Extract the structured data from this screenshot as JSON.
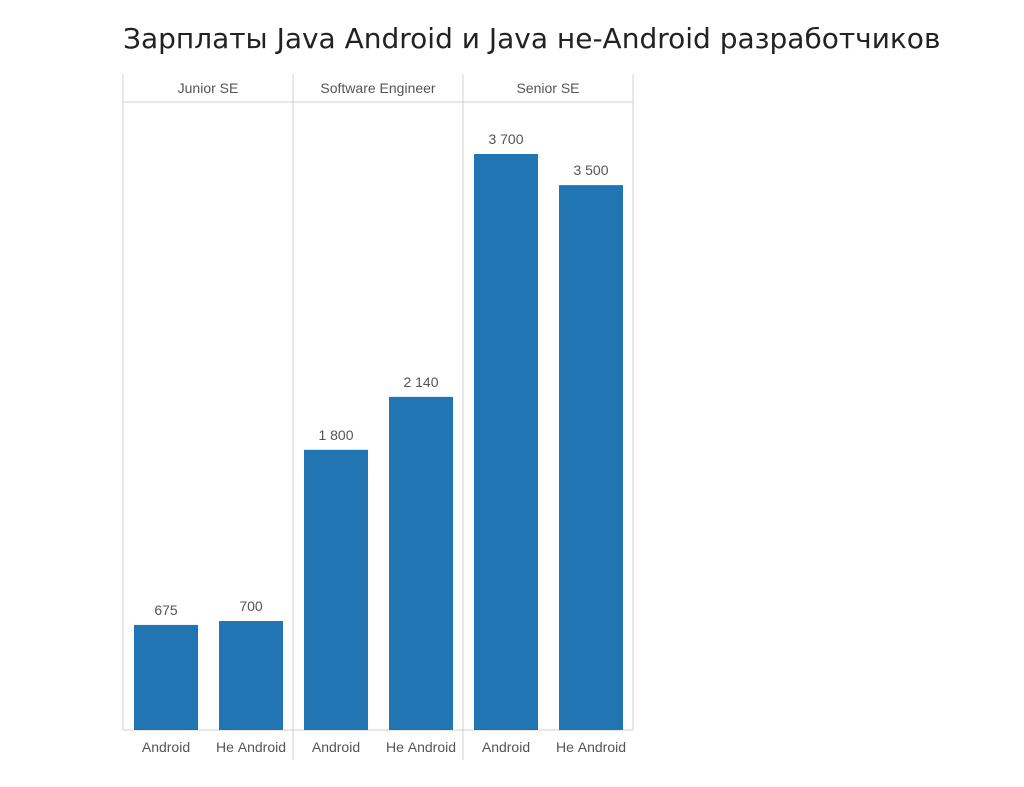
{
  "title": "Зарплаты Java Android и Java не-Android разработчиков",
  "chart_data": {
    "type": "bar",
    "title": "Зарплаты Java Android и Java не-Android разработчиков",
    "panels": [
      {
        "name": "Junior SE",
        "categories": [
          "Android",
          "Не Android"
        ],
        "values": [
          675,
          700
        ],
        "value_labels": [
          "675",
          "700"
        ]
      },
      {
        "name": "Software Engineer",
        "categories": [
          "Android",
          "Не Android"
        ],
        "values": [
          1800,
          2140
        ],
        "value_labels": [
          "1 800",
          "2 140"
        ]
      },
      {
        "name": "Senior SE",
        "categories": [
          "Android",
          "Не Android"
        ],
        "values": [
          3700,
          3500
        ],
        "value_labels": [
          "3 700",
          "3 500"
        ]
      }
    ],
    "ylim": [
      0,
      3700
    ],
    "grid": false,
    "legend": "none",
    "bar_color": "#2275b3",
    "border_color": "#d0d0d0"
  }
}
